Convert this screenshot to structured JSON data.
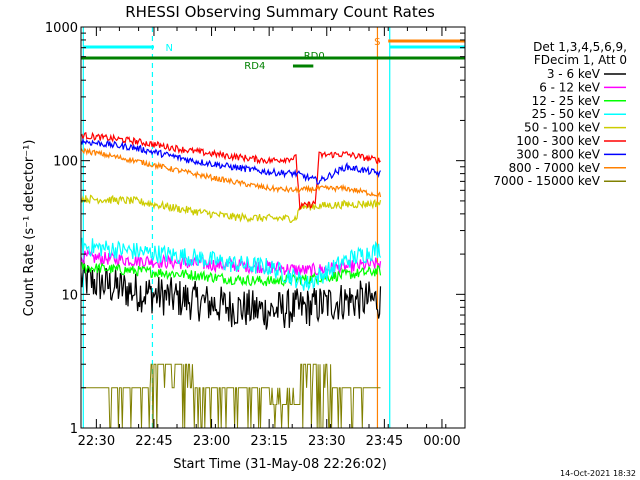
{
  "chart_data": {
    "type": "line",
    "title": "RHESSI Observing Summary Count Rates",
    "xlabel": "Start Time (31-May-08 22:26:02)",
    "ylabel": "Count Rate (s⁻¹ detector⁻¹)",
    "y_scale": "log",
    "ylim": [
      1,
      1000
    ],
    "xlim": [
      "22:26",
      "00:06"
    ],
    "x_ticks": [
      "22:30",
      "22:45",
      "23:00",
      "23:15",
      "23:30",
      "23:45",
      "00:00"
    ],
    "y_ticks": [
      "1",
      "10",
      "100",
      "1000"
    ],
    "legend_position": "right",
    "legend_header": [
      "Det 1,3,4,5,6,9,",
      "FDecim 1, Att 0"
    ],
    "series": [
      {
        "name": "3 - 6 keV",
        "color": "#000000",
        "x": [
          "22:26",
          "22:40",
          "22:55",
          "23:05",
          "23:15",
          "23:25",
          "23:35",
          "23:44"
        ],
        "y": [
          13,
          10.5,
          9,
          8,
          7.5,
          8,
          9,
          9
        ]
      },
      {
        "name": "6 - 12 keV",
        "color": "#ff00ff",
        "x": [
          "22:26",
          "22:40",
          "22:55",
          "23:05",
          "23:15",
          "23:25",
          "23:35",
          "23:44"
        ],
        "y": [
          19,
          18,
          17,
          16.5,
          16,
          15,
          16,
          17
        ]
      },
      {
        "name": "12 - 25 keV",
        "color": "#00ff00",
        "x": [
          "22:26",
          "22:40",
          "22:55",
          "23:05",
          "23:15",
          "23:25",
          "23:35",
          "23:44"
        ],
        "y": [
          16,
          15,
          14,
          13,
          12.5,
          13,
          14,
          15
        ]
      },
      {
        "name": "25 - 50 keV",
        "color": "#00ffff",
        "x": [
          "22:26",
          "22:40",
          "22:55",
          "23:05",
          "23:15",
          "23:25",
          "23:35",
          "23:44"
        ],
        "y": [
          23,
          21,
          19,
          17,
          16,
          12,
          18,
          22
        ]
      },
      {
        "name": "50 - 100 keV",
        "color": "#cccc00",
        "x": [
          "22:26",
          "22:40",
          "22:55",
          "23:05",
          "23:15",
          "23:22",
          "23:23",
          "23:35",
          "23:44"
        ],
        "y": [
          52,
          50,
          42,
          38,
          37,
          37,
          45,
          47,
          48
        ]
      },
      {
        "name": "100 - 300 keV",
        "color": "#ff0000",
        "x": [
          "22:26",
          "22:40",
          "22:55",
          "23:05",
          "23:15",
          "23:22",
          "23:23",
          "23:27",
          "23:28",
          "23:35",
          "23:44"
        ],
        "y": [
          155,
          140,
          118,
          108,
          100,
          105,
          45,
          48,
          110,
          112,
          100
        ]
      },
      {
        "name": "300 - 800 keV",
        "color": "#0000ff",
        "x": [
          "22:26",
          "22:40",
          "22:55",
          "23:05",
          "23:15",
          "23:22",
          "23:28",
          "23:35",
          "23:44"
        ],
        "y": [
          140,
          125,
          100,
          90,
          82,
          80,
          70,
          90,
          80
        ]
      },
      {
        "name": "800 - 7000 keV",
        "color": "#ff8000",
        "x": [
          "22:26",
          "22:40",
          "22:55",
          "23:05",
          "23:15",
          "23:22",
          "23:28",
          "23:35",
          "23:44"
        ],
        "y": [
          120,
          100,
          80,
          70,
          62,
          60,
          62,
          62,
          55
        ]
      },
      {
        "name": "7000 - 15000 keV",
        "color": "#808000",
        "x": [
          "22:26",
          "22:40",
          "22:44",
          "22:53",
          "22:55",
          "23:14",
          "23:15",
          "23:22",
          "23:23",
          "23:30",
          "23:31",
          "23:44"
        ],
        "y": [
          2,
          2,
          3,
          3,
          2,
          2,
          1.5,
          1.5,
          3,
          3,
          2,
          2
        ]
      }
    ],
    "flag_labels": [
      "N",
      "S",
      "RD0",
      "RD4"
    ],
    "timestamp": "14-Oct-2021 18:32"
  }
}
